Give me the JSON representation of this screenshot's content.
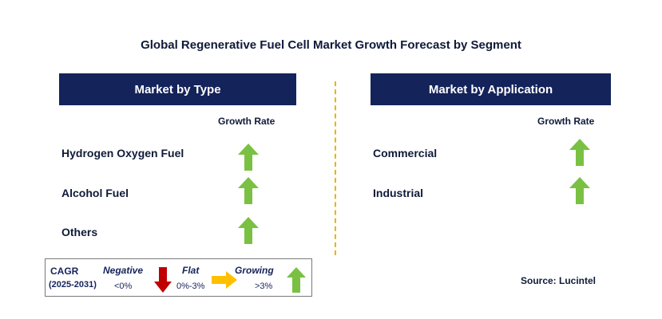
{
  "title": "Global Regenerative Fuel Cell Market Growth Forecast by Segment",
  "left_panel": {
    "header": "Market by Type",
    "growth_label": "Growth Rate",
    "items": [
      {
        "label": "Hydrogen Oxygen Fuel",
        "trend": "growing"
      },
      {
        "label": "Alcohol Fuel",
        "trend": "growing"
      },
      {
        "label": "Others",
        "trend": "growing"
      }
    ]
  },
  "right_panel": {
    "header": "Market by Application",
    "growth_label": "Growth Rate",
    "items": [
      {
        "label": "Commercial",
        "trend": "growing"
      },
      {
        "label": "Industrial",
        "trend": "growing"
      }
    ]
  },
  "legend": {
    "cagr_label": "CAGR",
    "period": "(2025-2031)",
    "negative_label": "Negative",
    "negative_range": "<0%",
    "flat_label": "Flat",
    "flat_range": "0%-3%",
    "growing_label": "Growing",
    "growing_range": ">3%"
  },
  "source": "Source: Lucintel",
  "colors": {
    "header_bg": "#14235a",
    "growing": "#7ac143",
    "negative": "#c00000",
    "flat": "#ffc000",
    "divider": "#f0b000"
  }
}
